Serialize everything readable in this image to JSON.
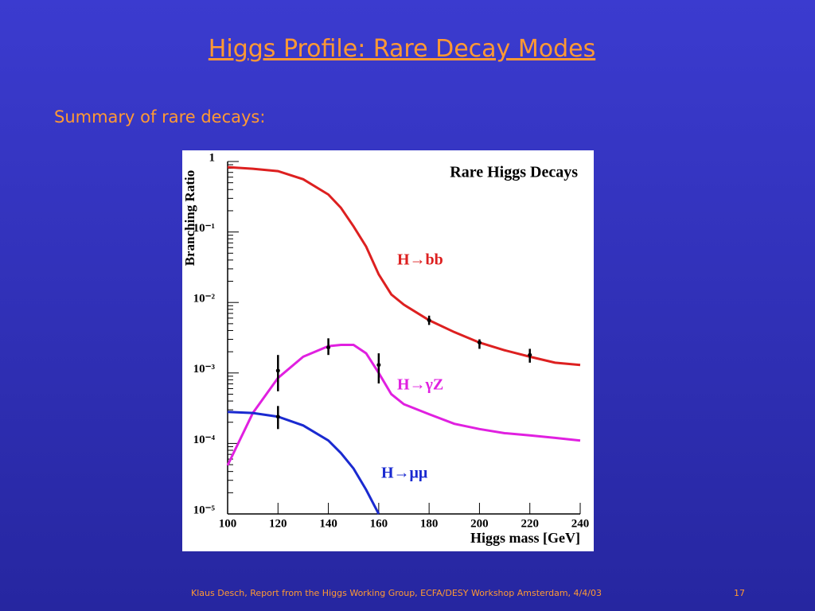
{
  "slide": {
    "title": "Higgs Profile: Rare Decay Modes",
    "subtitle": "Summary of rare decays:",
    "footer": "Klaus Desch, Report from the Higgs Working Group, ECFA/DESY Workshop Amsterdam, 4/4/03",
    "page_number": "17"
  },
  "chart_data": {
    "type": "line",
    "title": "Rare Higgs Decays",
    "x_label": "Higgs mass [GeV]",
    "y_label": "Branching Ratio",
    "log_y": true,
    "xlim": [
      100,
      240
    ],
    "ylim": [
      1e-05,
      1
    ],
    "xticks": [
      100,
      120,
      140,
      160,
      180,
      200,
      220,
      240
    ],
    "yticks": [
      {
        "value": 1e-05,
        "label": "10⁻⁵"
      },
      {
        "value": 0.0001,
        "label": "10⁻⁴"
      },
      {
        "value": 0.001,
        "label": "10⁻³"
      },
      {
        "value": 0.01,
        "label": "10⁻²"
      },
      {
        "value": 0.1,
        "label": "10⁻¹"
      },
      1
    ],
    "x": [
      100,
      110,
      120,
      130,
      140,
      145,
      150,
      155,
      160,
      165,
      170,
      180,
      190,
      200,
      210,
      220,
      230,
      240
    ],
    "series": [
      {
        "name": "H→bb",
        "color": "#dd2020",
        "values": [
          0.83,
          0.79,
          0.73,
          0.56,
          0.34,
          0.22,
          0.12,
          0.062,
          0.025,
          0.013,
          0.0093,
          0.0056,
          0.0038,
          0.0027,
          0.0021,
          0.0017,
          0.0014,
          0.0013
        ],
        "points_x": [
          180,
          200,
          220
        ],
        "points": [
          0.0056,
          0.0027,
          0.0018
        ],
        "points_low": [
          0.0048,
          0.0022,
          0.0014
        ],
        "points_high": [
          0.0065,
          0.003,
          0.0022
        ]
      },
      {
        "name": "H→γZ",
        "color": "#e020e0",
        "values": [
          4.9e-05,
          0.00027,
          0.00085,
          0.0017,
          0.0024,
          0.0025,
          0.0025,
          0.0019,
          0.001,
          0.0005,
          0.00036,
          0.00026,
          0.00019,
          0.00016,
          0.00014,
          0.00013,
          0.00012,
          0.00011
        ],
        "points_x": [
          120,
          140,
          160
        ],
        "points": [
          0.00108,
          0.0023,
          0.0013
        ],
        "points_low": [
          0.00055,
          0.0018,
          0.00071
        ],
        "points_high": [
          0.0018,
          0.0031,
          0.0019
        ]
      },
      {
        "name": "H→μμ",
        "color": "#1a2ad0",
        "values": [
          0.00028,
          0.00027,
          0.00024,
          0.00018,
          0.00011,
          7.3e-05,
          4.4e-05,
          2.2e-05,
          1e-05,
          null,
          null,
          null,
          null,
          null,
          null,
          null,
          null,
          null
        ],
        "points_x": [
          120
        ],
        "points": [
          0.00024
        ],
        "points_low": [
          0.00016
        ],
        "points_high": [
          0.00034
        ]
      }
    ]
  }
}
